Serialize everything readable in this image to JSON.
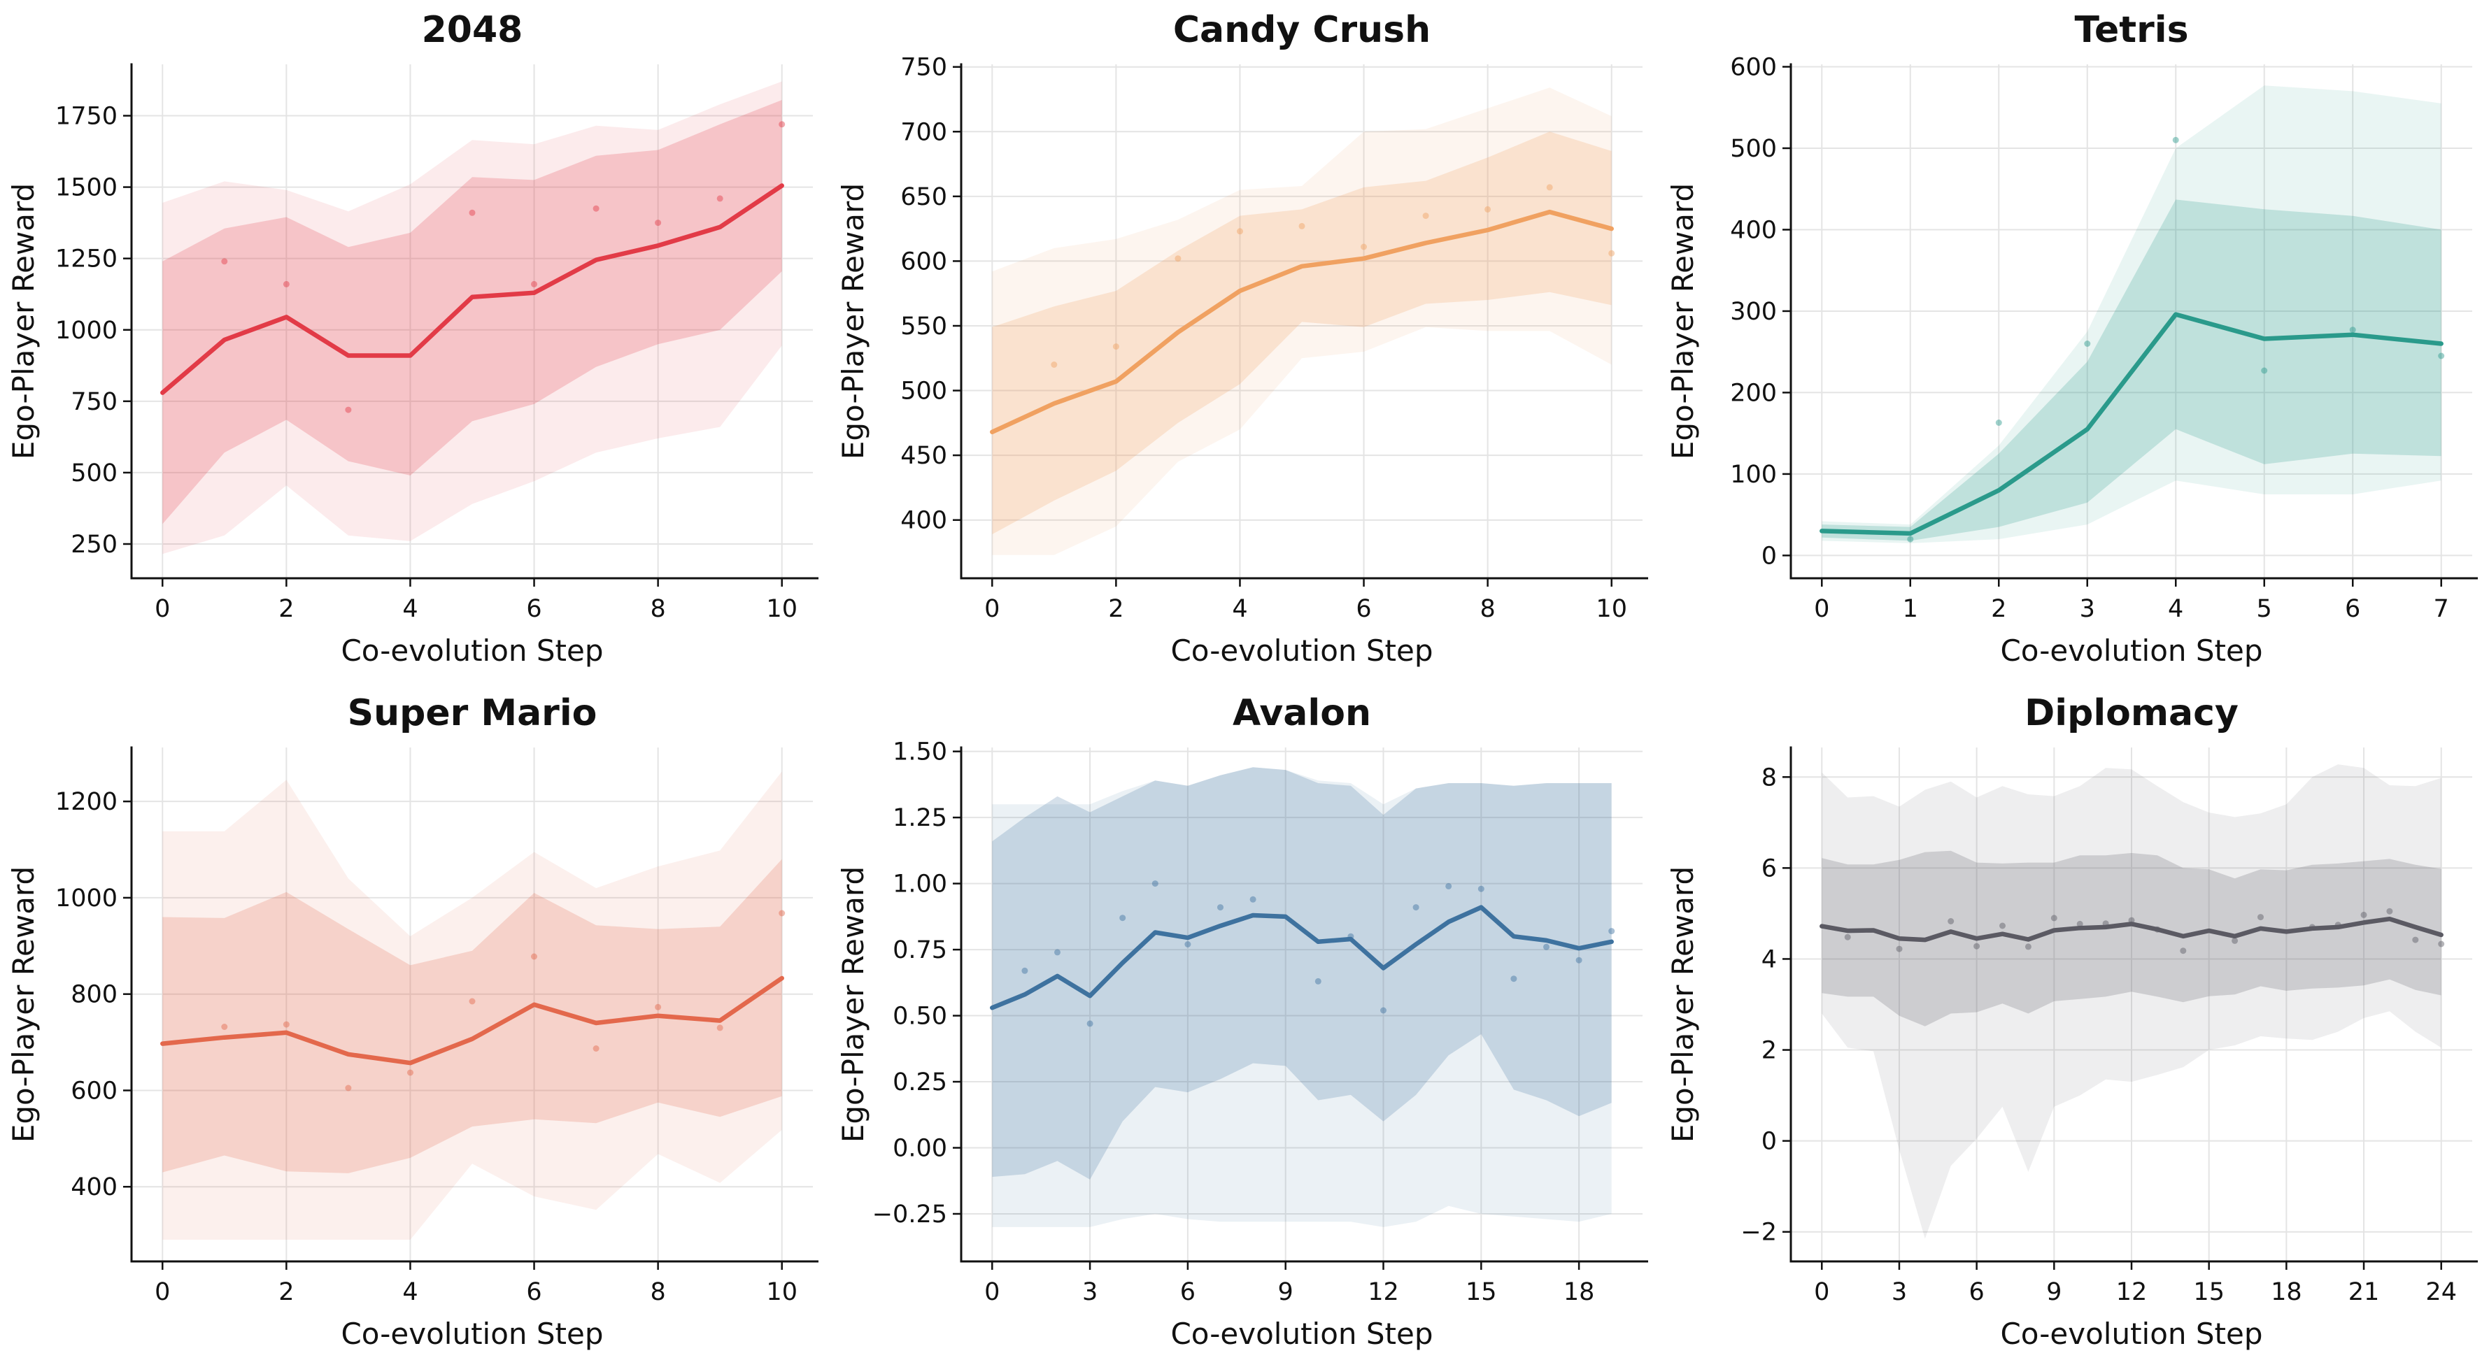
{
  "figure": {
    "background": "#ffffff",
    "grid_color": "#e4e4e4",
    "spine_color": "#111111",
    "rows": 2,
    "cols": 3
  },
  "chart_data": [
    {
      "type": "line",
      "title": "2048",
      "xlabel": "Co-evolution Step",
      "ylabel": "Ego-Player Reward",
      "color": "#e23b47",
      "grid": true,
      "legend": null,
      "x": [
        0,
        1,
        2,
        3,
        4,
        5,
        6,
        7,
        8,
        9,
        10
      ],
      "mean": [
        780,
        965,
        1045,
        910,
        910,
        1115,
        1130,
        1245,
        1295,
        1360,
        1505
      ],
      "band_inner_upper": [
        1240,
        1355,
        1395,
        1290,
        1340,
        1535,
        1525,
        1610,
        1630,
        1720,
        1805
      ],
      "band_inner_lower": [
        320,
        570,
        685,
        540,
        490,
        680,
        740,
        870,
        950,
        1000,
        1205
      ],
      "band_outer_upper": [
        1445,
        1520,
        1490,
        1415,
        1510,
        1665,
        1650,
        1715,
        1700,
        1790,
        1870
      ],
      "band_outer_lower": [
        215,
        280,
        455,
        280,
        260,
        390,
        470,
        570,
        620,
        660,
        945
      ],
      "scatter": [
        [
          1,
          1240
        ],
        [
          2,
          1160
        ],
        [
          3,
          720
        ],
        [
          5,
          1410
        ],
        [
          6,
          1160
        ],
        [
          7,
          1425
        ],
        [
          8,
          1375
        ],
        [
          9,
          1460
        ],
        [
          10,
          1720
        ]
      ],
      "xticks": [
        0,
        2,
        4,
        6,
        8,
        10
      ],
      "xtick_labels": [
        "0",
        "2",
        "4",
        "6",
        "8",
        "10"
      ],
      "yticks": [
        250,
        500,
        750,
        1000,
        1250,
        1500,
        1750
      ],
      "ytick_labels": [
        "250",
        "500",
        "750",
        "1000",
        "1250",
        "1500",
        "1750"
      ],
      "xlim": [
        -0.5,
        10.5
      ],
      "ylim": [
        130,
        1930
      ]
    },
    {
      "type": "line",
      "title": "Candy Crush",
      "xlabel": "Co-evolution Step",
      "ylabel": "Ego-Player Reward",
      "color": "#f0a161",
      "grid": true,
      "legend": null,
      "x": [
        0,
        1,
        2,
        3,
        4,
        5,
        6,
        7,
        8,
        9,
        10
      ],
      "mean": [
        468,
        490,
        507,
        545,
        577,
        596,
        602,
        614,
        624,
        638,
        625
      ],
      "band_inner_upper": [
        549,
        565,
        577,
        608,
        635,
        640,
        657,
        662,
        680,
        700,
        685
      ],
      "band_inner_lower": [
        389,
        415,
        438,
        475,
        505,
        553,
        549,
        567,
        570,
        576,
        566
      ],
      "band_outer_upper": [
        592,
        610,
        617,
        632,
        655,
        658,
        700,
        702,
        718,
        734,
        712
      ],
      "band_outer_lower": [
        373,
        373,
        395,
        445,
        470,
        525,
        530,
        549,
        546,
        546,
        520
      ],
      "scatter": [
        [
          1,
          520
        ],
        [
          2,
          534
        ],
        [
          3,
          602
        ],
        [
          4,
          623
        ],
        [
          5,
          627
        ],
        [
          6,
          611
        ],
        [
          7,
          635
        ],
        [
          8,
          640
        ],
        [
          9,
          657
        ],
        [
          10,
          606
        ]
      ],
      "xticks": [
        0,
        2,
        4,
        6,
        8,
        10
      ],
      "xtick_labels": [
        "0",
        "2",
        "4",
        "6",
        "8",
        "10"
      ],
      "yticks": [
        400,
        450,
        500,
        550,
        600,
        650,
        700,
        750
      ],
      "ytick_labels": [
        "400",
        "450",
        "500",
        "550",
        "600",
        "650",
        "700",
        "750"
      ],
      "xlim": [
        -0.5,
        10.5
      ],
      "ylim": [
        355,
        752
      ]
    },
    {
      "type": "line",
      "title": "Tetris",
      "xlabel": "Co-evolution Step",
      "ylabel": "Ego-Player Reward",
      "color": "#2a9a8b",
      "grid": true,
      "legend": null,
      "x": [
        0,
        1,
        2,
        3,
        4,
        5,
        6,
        7
      ],
      "mean": [
        30,
        27,
        80,
        155,
        296,
        266,
        271,
        260
      ],
      "band_inner_upper": [
        38,
        35,
        125,
        238,
        437,
        425,
        417,
        400
      ],
      "band_inner_lower": [
        22,
        18,
        35,
        65,
        155,
        112,
        125,
        122
      ],
      "band_outer_upper": [
        42,
        38,
        135,
        275,
        500,
        577,
        570,
        555
      ],
      "band_outer_lower": [
        18,
        15,
        20,
        38,
        92,
        75,
        75,
        92
      ],
      "scatter": [
        [
          1,
          20
        ],
        [
          2,
          163
        ],
        [
          3,
          260
        ],
        [
          4,
          510
        ],
        [
          5,
          227
        ],
        [
          6,
          277
        ],
        [
          7,
          245
        ]
      ],
      "xticks": [
        0,
        1,
        2,
        3,
        4,
        5,
        6,
        7
      ],
      "xtick_labels": [
        "0",
        "1",
        "2",
        "3",
        "4",
        "5",
        "6",
        "7"
      ],
      "yticks": [
        0,
        100,
        200,
        300,
        400,
        500,
        600
      ],
      "ytick_labels": [
        "0",
        "100",
        "200",
        "300",
        "400",
        "500",
        "600"
      ],
      "xlim": [
        -0.35,
        7.35
      ],
      "ylim": [
        -28,
        603
      ]
    },
    {
      "type": "line",
      "title": "Super Mario",
      "xlabel": "Co-evolution Step",
      "ylabel": "Ego-Player Reward",
      "color": "#e3684c",
      "grid": true,
      "legend": null,
      "x": [
        0,
        1,
        2,
        3,
        4,
        5,
        6,
        7,
        8,
        9,
        10
      ],
      "mean": [
        697,
        710,
        720,
        675,
        657,
        707,
        778,
        740,
        755,
        745,
        833
      ],
      "band_inner_upper": [
        960,
        958,
        1012,
        935,
        860,
        890,
        1010,
        943,
        935,
        940,
        1080
      ],
      "band_inner_lower": [
        430,
        465,
        432,
        428,
        460,
        525,
        540,
        532,
        575,
        545,
        588
      ],
      "band_outer_upper": [
        1138,
        1138,
        1245,
        1040,
        920,
        1000,
        1095,
        1020,
        1065,
        1098,
        1262
      ],
      "band_outer_lower": [
        290,
        290,
        290,
        290,
        290,
        448,
        380,
        352,
        468,
        408,
        518
      ],
      "scatter": [
        [
          1,
          732
        ],
        [
          2,
          737
        ],
        [
          3,
          605
        ],
        [
          4,
          637
        ],
        [
          5,
          785
        ],
        [
          6,
          878
        ],
        [
          7,
          687
        ],
        [
          8,
          773
        ],
        [
          9,
          730
        ],
        [
          10,
          968
        ]
      ],
      "xticks": [
        0,
        2,
        4,
        6,
        8,
        10
      ],
      "xtick_labels": [
        "0",
        "2",
        "4",
        "6",
        "8",
        "10"
      ],
      "yticks": [
        400,
        600,
        800,
        1000,
        1200
      ],
      "ytick_labels": [
        "400",
        "600",
        "800",
        "1000",
        "1200"
      ],
      "xlim": [
        -0.5,
        10.5
      ],
      "ylim": [
        245,
        1312
      ]
    },
    {
      "type": "line",
      "title": "Avalon",
      "xlabel": "Co-evolution Step",
      "ylabel": "Ego-Player Reward",
      "color": "#3e729f",
      "grid": true,
      "legend": null,
      "x": [
        0,
        1,
        2,
        3,
        4,
        5,
        6,
        7,
        8,
        9,
        10,
        11,
        12,
        13,
        14,
        15,
        16,
        17,
        18,
        19
      ],
      "mean": [
        0.53,
        0.58,
        0.65,
        0.575,
        0.7,
        0.815,
        0.795,
        0.84,
        0.88,
        0.875,
        0.78,
        0.79,
        0.68,
        0.77,
        0.855,
        0.91,
        0.8,
        0.785,
        0.755,
        0.78
      ],
      "band_inner_upper": [
        1.16,
        1.25,
        1.33,
        1.27,
        1.33,
        1.39,
        1.37,
        1.41,
        1.44,
        1.43,
        1.38,
        1.37,
        1.26,
        1.36,
        1.38,
        1.38,
        1.37,
        1.38,
        1.38,
        1.38
      ],
      "band_inner_lower": [
        -0.11,
        -0.1,
        -0.05,
        -0.12,
        0.1,
        0.23,
        0.21,
        0.26,
        0.32,
        0.31,
        0.18,
        0.2,
        0.1,
        0.2,
        0.35,
        0.43,
        0.22,
        0.18,
        0.12,
        0.17
      ],
      "band_outer_upper": [
        1.3,
        1.3,
        1.3,
        1.3,
        1.35,
        1.39,
        1.37,
        1.41,
        1.44,
        1.43,
        1.39,
        1.38,
        1.3,
        1.36,
        1.38,
        1.38,
        1.37,
        1.38,
        1.38,
        1.38
      ],
      "band_outer_lower": [
        -0.3,
        -0.3,
        -0.3,
        -0.3,
        -0.27,
        -0.25,
        -0.27,
        -0.28,
        -0.28,
        -0.28,
        -0.28,
        -0.28,
        -0.3,
        -0.28,
        -0.22,
        -0.25,
        -0.26,
        -0.27,
        -0.28,
        -0.25
      ],
      "scatter": [
        [
          1,
          0.67
        ],
        [
          2,
          0.74
        ],
        [
          3,
          0.47
        ],
        [
          4,
          0.87
        ],
        [
          5,
          1.0
        ],
        [
          6,
          0.77
        ],
        [
          7,
          0.91
        ],
        [
          8,
          0.94
        ],
        [
          10,
          0.63
        ],
        [
          11,
          0.8
        ],
        [
          12,
          0.52
        ],
        [
          13,
          0.91
        ],
        [
          14,
          0.99
        ],
        [
          15,
          0.98
        ],
        [
          16,
          0.64
        ],
        [
          17,
          0.76
        ],
        [
          18,
          0.71
        ],
        [
          19,
          0.82
        ]
      ],
      "xticks": [
        0,
        3,
        6,
        9,
        12,
        15,
        18
      ],
      "xtick_labels": [
        "0",
        "3",
        "6",
        "9",
        "12",
        "15",
        "18"
      ],
      "yticks": [
        -0.25,
        0.0,
        0.25,
        0.5,
        0.75,
        1.0,
        1.25,
        1.5
      ],
      "ytick_labels": [
        "−0.25",
        "0.00",
        "0.25",
        "0.50",
        "0.75",
        "1.00",
        "1.25",
        "1.50"
      ],
      "xlim": [
        -0.95,
        19.95
      ],
      "ylim": [
        -0.43,
        1.515
      ]
    },
    {
      "type": "line",
      "title": "Diplomacy",
      "xlabel": "Co-evolution Step",
      "ylabel": "Ego-Player Reward",
      "color": "#5b5a63",
      "grid": true,
      "legend": null,
      "x": [
        0,
        1,
        2,
        3,
        4,
        5,
        6,
        7,
        8,
        9,
        10,
        11,
        12,
        13,
        14,
        15,
        16,
        17,
        18,
        19,
        20,
        21,
        22,
        23,
        24
      ],
      "mean": [
        4.72,
        4.62,
        4.63,
        4.45,
        4.42,
        4.6,
        4.45,
        4.55,
        4.43,
        4.63,
        4.68,
        4.7,
        4.77,
        4.65,
        4.5,
        4.62,
        4.5,
        4.67,
        4.6,
        4.67,
        4.7,
        4.8,
        4.88,
        4.7,
        4.53
      ],
      "band_inner_upper": [
        6.22,
        6.08,
        6.08,
        6.18,
        6.35,
        6.38,
        6.12,
        6.1,
        6.12,
        6.12,
        6.28,
        6.28,
        6.33,
        6.28,
        6.0,
        5.97,
        5.77,
        5.97,
        5.95,
        6.07,
        6.1,
        6.15,
        6.2,
        6.07,
        5.98
      ],
      "band_inner_lower": [
        3.25,
        3.17,
        3.17,
        2.75,
        2.52,
        2.8,
        2.83,
        3.02,
        2.8,
        3.07,
        3.12,
        3.17,
        3.28,
        3.17,
        3.05,
        3.18,
        3.22,
        3.4,
        3.3,
        3.35,
        3.37,
        3.42,
        3.55,
        3.32,
        3.2
      ],
      "band_outer_upper": [
        8.1,
        7.55,
        7.58,
        7.35,
        7.72,
        7.9,
        7.55,
        7.8,
        7.62,
        7.58,
        7.8,
        8.2,
        8.17,
        7.8,
        7.45,
        7.22,
        7.12,
        7.2,
        7.4,
        8.0,
        8.28,
        8.2,
        7.82,
        7.8,
        7.98
      ],
      "band_outer_lower": [
        2.8,
        2.05,
        1.97,
        -0.2,
        -2.15,
        -0.55,
        0.05,
        0.75,
        -0.68,
        0.75,
        1.0,
        1.35,
        1.3,
        1.45,
        1.62,
        2.0,
        2.1,
        2.3,
        2.25,
        2.22,
        2.4,
        2.7,
        2.85,
        2.4,
        2.05
      ],
      "scatter": [
        [
          1,
          4.48
        ],
        [
          3,
          4.22
        ],
        [
          5,
          4.83
        ],
        [
          6,
          4.28
        ],
        [
          7,
          4.73
        ],
        [
          8,
          4.27
        ],
        [
          9,
          4.9
        ],
        [
          10,
          4.77
        ],
        [
          11,
          4.78
        ],
        [
          12,
          4.85
        ],
        [
          13,
          4.65
        ],
        [
          14,
          4.18
        ],
        [
          16,
          4.4
        ],
        [
          17,
          4.92
        ],
        [
          19,
          4.7
        ],
        [
          20,
          4.75
        ],
        [
          21,
          4.97
        ],
        [
          22,
          5.05
        ],
        [
          23,
          4.42
        ],
        [
          24,
          4.33
        ]
      ],
      "xticks": [
        0,
        3,
        6,
        9,
        12,
        15,
        18,
        21,
        24
      ],
      "xtick_labels": [
        "0",
        "3",
        "6",
        "9",
        "12",
        "15",
        "18",
        "21",
        "24"
      ],
      "yticks": [
        -2,
        0,
        2,
        4,
        6,
        8
      ],
      "ytick_labels": [
        "−2",
        "0",
        "2",
        "4",
        "6",
        "8"
      ],
      "xlim": [
        -1.2,
        25.2
      ],
      "ylim": [
        -2.65,
        8.65
      ]
    }
  ]
}
